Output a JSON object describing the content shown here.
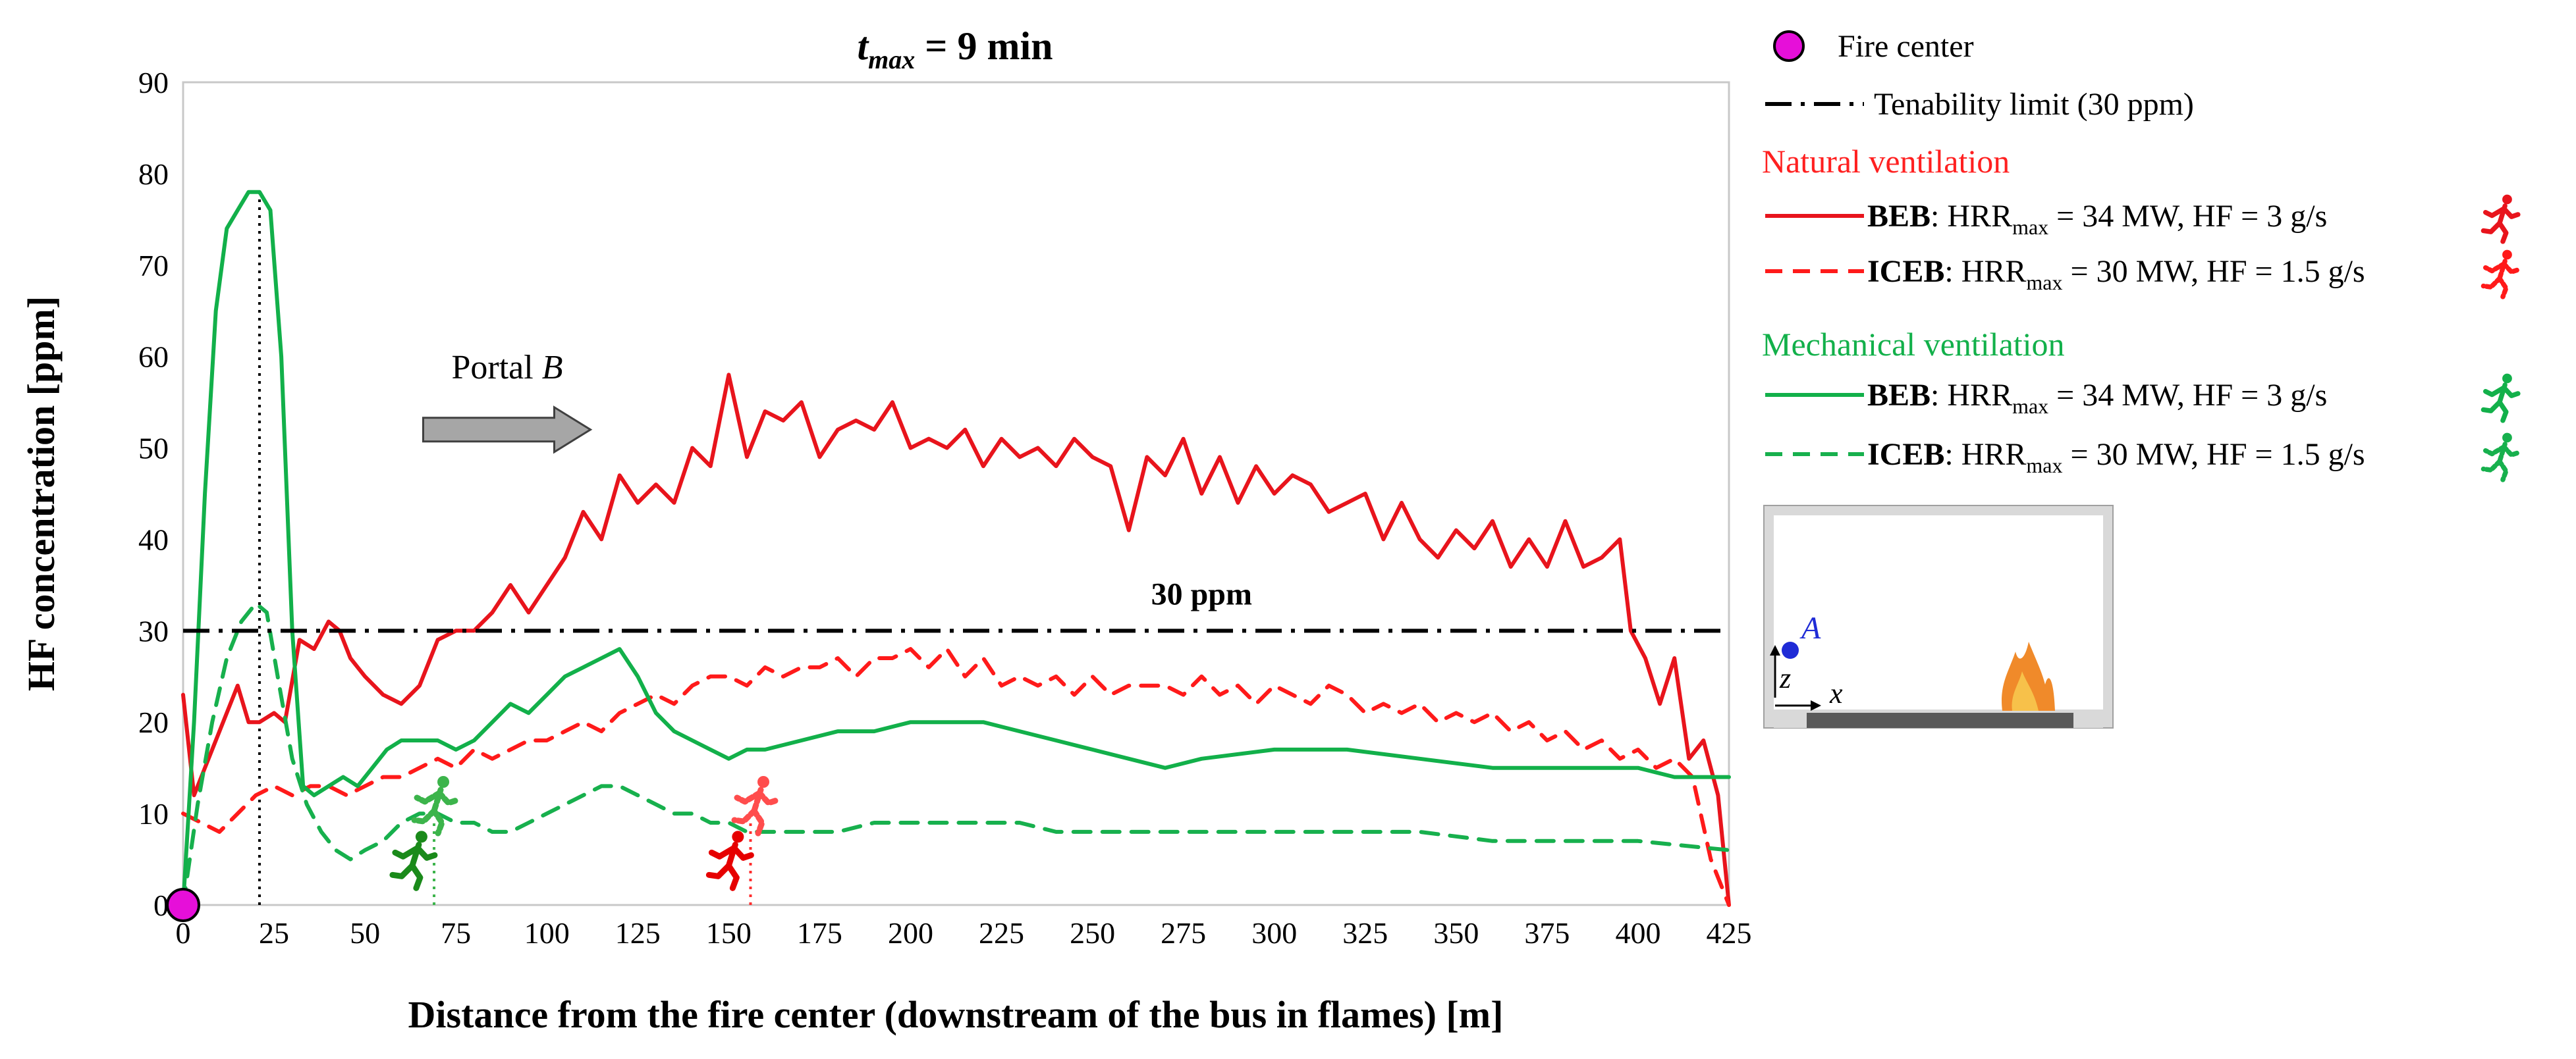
{
  "chart_data": {
    "type": "line",
    "title": "t",
    "title_sub": "max",
    "title_rest": " = 9 min",
    "xlabel": "Distance from the fire center (downstream of the bus in flames) [m]",
    "ylabel": "HF concentration [ppm]",
    "xlim": [
      0,
      425
    ],
    "ylim": [
      0,
      90
    ],
    "xticks": [
      0,
      25,
      50,
      75,
      100,
      125,
      150,
      175,
      200,
      225,
      250,
      275,
      300,
      325,
      350,
      375,
      400,
      425
    ],
    "yticks": [
      0,
      10,
      20,
      30,
      40,
      50,
      60,
      70,
      80,
      90
    ],
    "threshold": {
      "value": 30,
      "label": "30 ppm",
      "label_x": 280
    },
    "fire_center": {
      "x": 0,
      "y": 0
    },
    "annotations": {
      "portal_label": "Portal ",
      "portal_italic": "B",
      "portal_arrow_x": [
        66,
        112
      ],
      "portal_arrow_y": 52,
      "point_label": "A",
      "axis_z": "z",
      "axis_x": "x"
    },
    "markers": [
      {
        "name": "mech-beb-runner",
        "x": 63,
        "y": 3,
        "color": "#1a8a1a",
        "style": "solid"
      },
      {
        "name": "mech-iceb-runner",
        "x": 69,
        "y": 9,
        "color": "#3cb44b",
        "style": "dashed"
      },
      {
        "name": "nat-beb-runner",
        "x": 150,
        "y": 3,
        "color": "#e60000",
        "style": "solid"
      },
      {
        "name": "nat-iceb-runner",
        "x": 157,
        "y": 9,
        "color": "#ff4d4d",
        "style": "dashed"
      }
    ],
    "vertical_lines": [
      {
        "name": "peak-dotted-line",
        "x": 21,
        "y_top": 78,
        "color": "#000000"
      },
      {
        "name": "mech-iceb-dotted-line",
        "x": 69,
        "y_top": 9.5,
        "color": "#3cb44b"
      },
      {
        "name": "nat-iceb-dotted-line",
        "x": 156,
        "y_top": 9.5,
        "color": "#ff2d2d"
      }
    ],
    "series": [
      {
        "name": "Natural BEB",
        "color": "#e8141c",
        "dash": "solid",
        "x": [
          0,
          3,
          6,
          10,
          15,
          18,
          21,
          25,
          28,
          32,
          36,
          40,
          43,
          46,
          50,
          55,
          60,
          65,
          70,
          75,
          80,
          85,
          90,
          95,
          100,
          105,
          110,
          115,
          120,
          125,
          130,
          135,
          140,
          145,
          150,
          155,
          160,
          165,
          170,
          175,
          180,
          185,
          190,
          195,
          200,
          205,
          210,
          215,
          220,
          225,
          230,
          235,
          240,
          245,
          250,
          255,
          260,
          265,
          270,
          275,
          280,
          285,
          290,
          295,
          300,
          305,
          310,
          315,
          320,
          325,
          330,
          335,
          340,
          345,
          350,
          355,
          360,
          365,
          370,
          375,
          380,
          385,
          390,
          395,
          398,
          402,
          406,
          410,
          414,
          418,
          422,
          425
        ],
        "y": [
          23,
          12,
          15,
          19,
          24,
          20,
          20,
          21,
          20,
          29,
          28,
          31,
          30,
          27,
          25,
          23,
          22,
          24,
          29,
          30,
          30,
          32,
          35,
          32,
          35,
          38,
          43,
          40,
          47,
          44,
          46,
          44,
          50,
          48,
          58,
          49,
          54,
          53,
          55,
          49,
          52,
          53,
          52,
          55,
          50,
          51,
          50,
          52,
          48,
          51,
          49,
          50,
          48,
          51,
          49,
          48,
          41,
          49,
          47,
          51,
          45,
          49,
          44,
          48,
          45,
          47,
          46,
          43,
          44,
          45,
          40,
          44,
          40,
          38,
          41,
          39,
          42,
          37,
          40,
          37,
          42,
          37,
          38,
          40,
          30,
          27,
          22,
          27,
          16,
          18,
          12,
          0
        ]
      },
      {
        "name": "Natural ICEB",
        "color": "#ff1a1a",
        "dash": "dashed",
        "x": [
          0,
          5,
          10,
          15,
          20,
          25,
          30,
          35,
          40,
          45,
          50,
          55,
          60,
          65,
          70,
          75,
          80,
          85,
          90,
          95,
          100,
          105,
          110,
          115,
          120,
          125,
          130,
          135,
          140,
          145,
          150,
          155,
          160,
          165,
          170,
          175,
          180,
          185,
          190,
          195,
          200,
          205,
          210,
          215,
          220,
          225,
          230,
          235,
          240,
          245,
          250,
          255,
          260,
          265,
          270,
          275,
          280,
          285,
          290,
          295,
          300,
          305,
          310,
          315,
          320,
          325,
          330,
          335,
          340,
          345,
          350,
          355,
          360,
          365,
          370,
          375,
          380,
          385,
          390,
          395,
          400,
          405,
          410,
          415,
          420,
          425
        ],
        "y": [
          10,
          9,
          8,
          10,
          12,
          13,
          12,
          13,
          13,
          12,
          13,
          14,
          14,
          15,
          16,
          15,
          17,
          16,
          17,
          18,
          18,
          19,
          20,
          19,
          21,
          22,
          23,
          22,
          24,
          25,
          25,
          24,
          26,
          25,
          26,
          26,
          27,
          25,
          27,
          27,
          28,
          26,
          28,
          25,
          27,
          24,
          25,
          24,
          25,
          23,
          25,
          23,
          24,
          24,
          24,
          23,
          25,
          23,
          24,
          22,
          24,
          23,
          22,
          24,
          23,
          21,
          22,
          21,
          22,
          20,
          21,
          20,
          21,
          19,
          20,
          18,
          19,
          17,
          18,
          16,
          17,
          15,
          16,
          14,
          5,
          0
        ]
      },
      {
        "name": "Mechanical BEB",
        "color": "#12b04a",
        "dash": "solid",
        "x": [
          0,
          3,
          6,
          9,
          12,
          15,
          18,
          21,
          24,
          27,
          30,
          33,
          36,
          40,
          44,
          48,
          52,
          56,
          60,
          65,
          70,
          75,
          80,
          85,
          90,
          95,
          100,
          105,
          110,
          115,
          120,
          125,
          130,
          135,
          140,
          145,
          150,
          155,
          160,
          170,
          180,
          190,
          200,
          210,
          220,
          230,
          240,
          250,
          260,
          270,
          280,
          300,
          320,
          340,
          360,
          380,
          400,
          410,
          420,
          425
        ],
        "y": [
          0,
          20,
          45,
          65,
          74,
          76,
          78,
          78,
          76,
          60,
          30,
          13,
          12,
          13,
          14,
          13,
          15,
          17,
          18,
          18,
          18,
          17,
          18,
          20,
          22,
          21,
          23,
          25,
          26,
          27,
          28,
          25,
          21,
          19,
          18,
          17,
          16,
          17,
          17,
          18,
          19,
          19,
          20,
          20,
          20,
          19,
          18,
          17,
          16,
          15,
          16,
          17,
          17,
          16,
          15,
          15,
          15,
          14,
          14,
          14
        ]
      },
      {
        "name": "Mechanical ICEB",
        "color": "#17b04d",
        "dash": "dashed",
        "x": [
          0,
          4,
          8,
          12,
          16,
          20,
          23,
          26,
          30,
          34,
          38,
          42,
          46,
          50,
          55,
          60,
          65,
          70,
          75,
          80,
          85,
          90,
          95,
          100,
          105,
          110,
          115,
          120,
          125,
          130,
          135,
          140,
          145,
          150,
          155,
          160,
          170,
          180,
          190,
          200,
          210,
          220,
          230,
          240,
          260,
          280,
          300,
          320,
          340,
          360,
          380,
          400,
          425
        ],
        "y": [
          0,
          11,
          20,
          27,
          31,
          33,
          32,
          25,
          16,
          11,
          8,
          6,
          5,
          6,
          7,
          9,
          10,
          10,
          9,
          9,
          8,
          8,
          9,
          10,
          11,
          12,
          13,
          13,
          12,
          11,
          10,
          10,
          9,
          9,
          8,
          8,
          8,
          8,
          9,
          9,
          9,
          9,
          9,
          8,
          8,
          8,
          8,
          8,
          8,
          7,
          7,
          7,
          6
        ]
      }
    ],
    "legend": {
      "fire_center": "Fire center",
      "tenability": "Tenability limit (30 ppm)",
      "natural_heading": "Natural ventilation",
      "mechanical_heading": "Mechanical ventilation",
      "entries": [
        {
          "bold": "BEB",
          "rest1": ": HRR",
          "sub": "max",
          "rest2": " = 34 MW, HF = 3 g/s",
          "color": "#e8141c",
          "dash": "solid",
          "group": "natural"
        },
        {
          "bold": "ICEB",
          "rest1": ": HRR",
          "sub": "max",
          "rest2": " = 30 MW, HF = 1.5 g/s",
          "color": "#ff1a1a",
          "dash": "dashed",
          "group": "natural"
        },
        {
          "bold": "BEB",
          "rest1": ": HRR",
          "sub": "max",
          "rest2": " = 34 MW, HF = 3 g/s",
          "color": "#12b04a",
          "dash": "solid",
          "group": "mechanical"
        },
        {
          "bold": "ICEB",
          "rest1": ": HRR",
          "sub": "max",
          "rest2": " = 30 MW, HF = 1.5 g/s",
          "color": "#17b04d",
          "dash": "dashed",
          "group": "mechanical"
        }
      ]
    },
    "colors": {
      "natural_heading": "#ff2020",
      "mechanical_heading": "#12b04a",
      "fire_marker": "#e60fd9",
      "point_a": "#1f2bd6"
    }
  }
}
